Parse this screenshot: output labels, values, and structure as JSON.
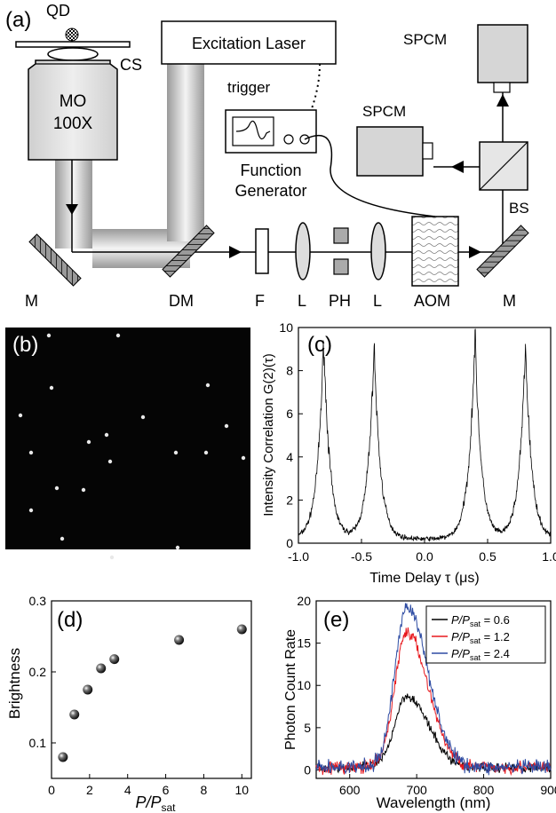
{
  "panel_a": {
    "panel_label": "(a)",
    "labels": {
      "qd": "QD",
      "cs": "CS",
      "mo_line1": "MO",
      "mo_line2": "100X",
      "laser": "Excitation Laser",
      "trigger": "trigger",
      "fg_line1": "Function",
      "fg_line2": "Generator",
      "spcm_top": "SPCM",
      "spcm_side": "SPCM",
      "bs": "BS",
      "m_left": "M",
      "dm": "DM",
      "f": "F",
      "l1": "L",
      "ph": "PH",
      "l2": "L",
      "aom": "AOM",
      "m_right": "M"
    }
  },
  "panel_b": {
    "panel_label": "(b)"
  },
  "chart_data": [
    {
      "panel": "(c)",
      "type": "line",
      "xlabel": "Time Delay τ (μs)",
      "ylabel": "Intensity Correlation G(2)(τ)",
      "xlim": [
        -1.0,
        1.0
      ],
      "ylim": [
        0,
        10
      ],
      "xticks": [
        "-1.0",
        "-0.5",
        "0.0",
        "0.5",
        "1.0"
      ],
      "yticks": [
        "0",
        "2",
        "4",
        "6",
        "8",
        "10"
      ],
      "peaks": [
        {
          "x": -0.8,
          "y": 9.3
        },
        {
          "x": -0.4,
          "y": 9.0
        },
        {
          "x": 0.4,
          "y": 9.5
        },
        {
          "x": 0.8,
          "y": 9.0
        }
      ],
      "baseline_center": 0.2,
      "color": "#000000"
    },
    {
      "panel": "(d)",
      "type": "scatter",
      "xlabel": "P/Psat",
      "ylabel": "Brightness",
      "xlim": [
        0,
        10.5
      ],
      "ylim": [
        0.05,
        0.3
      ],
      "xticks": [
        "0",
        "2",
        "4",
        "6",
        "8",
        "10"
      ],
      "yticks": [
        "0.1",
        "0.2",
        "0.3"
      ],
      "x": [
        0.6,
        1.2,
        1.9,
        2.6,
        3.3,
        6.7,
        10.0
      ],
      "y": [
        0.08,
        0.14,
        0.175,
        0.205,
        0.218,
        0.245,
        0.26
      ]
    },
    {
      "panel": "(e)",
      "type": "line",
      "xlabel": "Wavelength (nm)",
      "ylabel": "Photon Count Rate",
      "xlim": [
        550,
        900
      ],
      "ylim": [
        -1,
        20
      ],
      "xticks": [
        "600",
        "700",
        "800",
        "900"
      ],
      "yticks": [
        "0",
        "5",
        "10",
        "15",
        "20"
      ],
      "legend_position": "top-right",
      "series": [
        {
          "name": "P/Psat = 0.6",
          "color": "#000000",
          "peak_x": 685,
          "peak_y": 8.5
        },
        {
          "name": "P/Psat = 1.2",
          "color": "#e8191e",
          "peak_x": 685,
          "peak_y": 16.0
        },
        {
          "name": "P/Psat = 2.4",
          "color": "#2e4ca3",
          "peak_x": 685,
          "peak_y": 19.0
        }
      ],
      "legend": [
        {
          "prefix": "P/P",
          "sub": "sat",
          "value": " = 0.6"
        },
        {
          "prefix": "P/P",
          "sub": "sat",
          "value": " = 1.2"
        },
        {
          "prefix": "P/P",
          "sub": "sat",
          "value": " = 2.4"
        }
      ]
    }
  ]
}
